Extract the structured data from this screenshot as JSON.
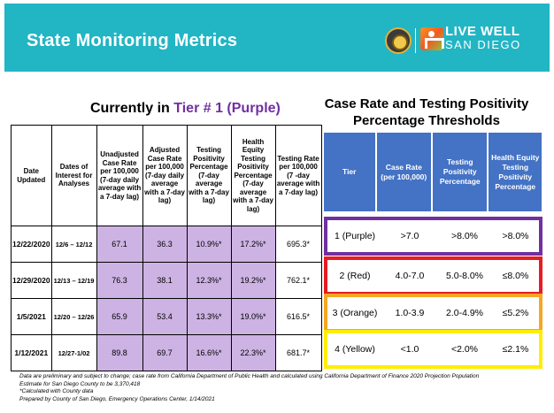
{
  "header": {
    "title": "State Monitoring Metrics",
    "logo_line1": "LIVE WELL",
    "logo_line2": "SAN DIEGO"
  },
  "left_title": {
    "prefix": "Currently in ",
    "tier": "Tier # 1 (Purple)"
  },
  "right_title": {
    "line1": "Case Rate and Testing Positivity",
    "line2": "Percentage Thresholds"
  },
  "metrics_table": {
    "headers": [
      "Date Updated",
      "Dates of Interest for Analyses",
      "Unadjusted Case Rate per 100,000 (7-day daily average with a 7-day lag)",
      "Adjusted Case Rate per 100,000 (7-day daily average with a 7-day lag)",
      "Testing Positivity Percentage (7-day average with a 7-day lag)",
      "Health Equity Testing Positivity Percentage (7-day average with a 7-day lag)",
      "Testing Rate per 100,000 (7 -day average with a 7-day lag)"
    ],
    "rows": [
      [
        "12/22/2020",
        "12/6 – 12/12",
        "67.1",
        "36.3",
        "10.9%*",
        "17.2%*",
        "695.3*"
      ],
      [
        "12/29/2020",
        "12/13 – 12/19",
        "76.3",
        "38.1",
        "12.3%*",
        "19.2%*",
        "762.1*"
      ],
      [
        "1/5/2021",
        "12/20 – 12/26",
        "65.9",
        "53.4",
        "13.3%*",
        "19.0%*",
        "616.5*"
      ],
      [
        "1/12/2021",
        "12/27-1/02",
        "89.8",
        "69.7",
        "16.6%*",
        "22.3%*",
        "681.7*"
      ]
    ]
  },
  "thresholds": {
    "headers": [
      "Tier",
      "Case Rate (per 100,000)",
      "Testing Positivity Percentage",
      "Health Equity Testing Positivity Percentage"
    ],
    "rows": [
      [
        "1 (Purple)",
        ">7.0",
        ">8.0%",
        ">8.0%"
      ],
      [
        "2 (Red)",
        "4.0-7.0",
        "5.0-8.0%",
        "≤8.0%"
      ],
      [
        "3 (Orange)",
        "1.0-3.9",
        "2.0-4.9%",
        "≤5.2%"
      ],
      [
        "4 (Yellow)",
        "<1.0",
        "<2.0%",
        "≤2.1%"
      ]
    ],
    "colors": [
      "#7030a0",
      "#e51c23",
      "#f5a623",
      "#ffee00"
    ]
  },
  "notes": {
    "line1": "Data are preliminary and subject to change; case rate from California Department of Public Health and calculated using California Department of Finance 2020 Projection Population",
    "line2": "Estimate for San Diego County to be 3,370,418",
    "line3": "*Calculated with County data",
    "line4": "Prepared by County of San Diego, Emergency Operations Center, 1/14/2021"
  }
}
